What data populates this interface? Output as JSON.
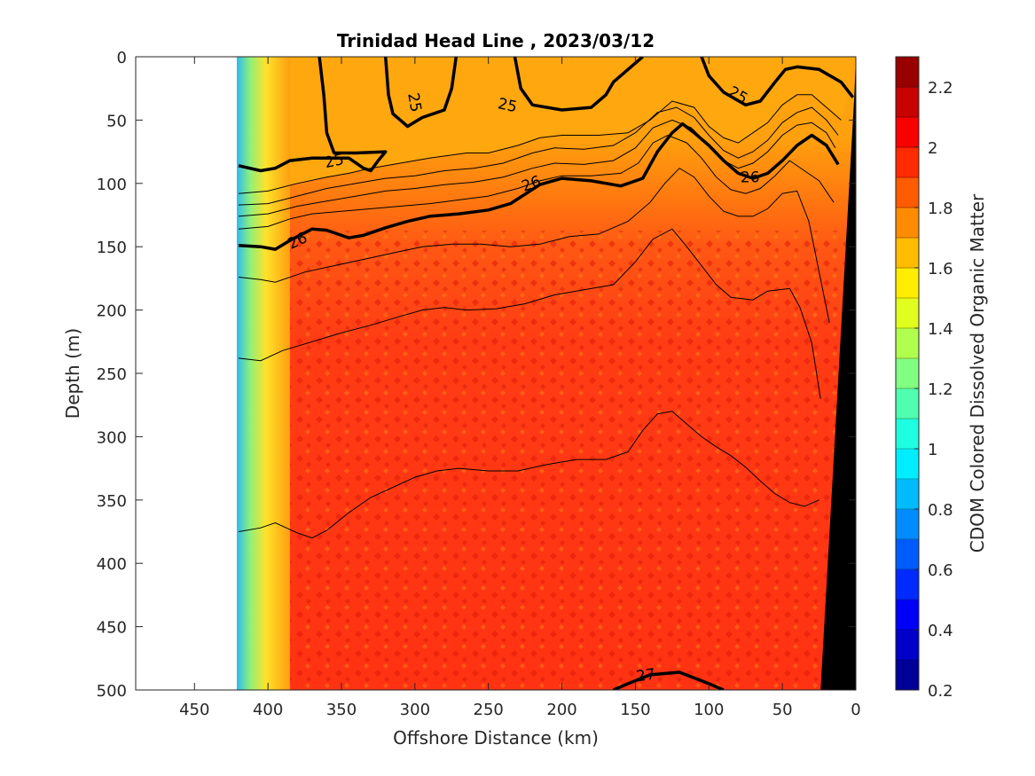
{
  "chart_data": {
    "type": "contour",
    "title": "Trinidad Head Line , 2023/03/12",
    "xlabel": "Offshore Distance (km)",
    "ylabel": "Depth (m)",
    "colorbar_label": "CDOM Colored Dissolved Organic Matter",
    "xlim": [
      490,
      0
    ],
    "ylim": [
      0,
      500
    ],
    "x_reversed": true,
    "y_reversed": true,
    "x_ticks": [
      450,
      400,
      350,
      300,
      250,
      200,
      150,
      100,
      50,
      0
    ],
    "y_ticks": [
      0,
      50,
      100,
      150,
      200,
      250,
      300,
      350,
      400,
      450,
      500
    ],
    "colorbar_range": [
      0.2,
      2.3
    ],
    "colorbar_ticks": [
      0.2,
      0.4,
      0.6,
      0.8,
      1,
      1.2,
      1.4,
      1.6,
      1.8,
      2,
      2.2
    ],
    "colormap": "jet",
    "data_extent_km": [
      420,
      0
    ],
    "field_description": {
      "surface_layer_value": 1.75,
      "deep_value": 2.05,
      "inshore_edge_value": 1.6,
      "offshore_edge_value": 0.9
    },
    "bathymetry_color": "#000000",
    "density_contours_labeled": [
      {
        "label": "25",
        "points": [
          [
            420,
            86
          ],
          [
            405,
            90
          ],
          [
            395,
            88
          ],
          [
            385,
            82
          ],
          [
            370,
            80
          ],
          [
            345,
            80
          ],
          [
            335,
            88
          ],
          [
            330,
            90
          ],
          [
            325,
            82
          ],
          [
            320,
            75
          ],
          [
            340,
            76
          ],
          [
            355,
            76
          ],
          [
            360,
            60
          ],
          [
            362,
            30
          ],
          [
            365,
            0
          ]
        ]
      },
      {
        "label": "25",
        "points": [
          [
            320,
            0
          ],
          [
            318,
            30
          ],
          [
            315,
            45
          ],
          [
            305,
            55
          ],
          [
            295,
            48
          ],
          [
            280,
            42
          ],
          [
            275,
            25
          ],
          [
            272,
            0
          ]
        ]
      },
      {
        "label": "25",
        "points": [
          [
            232,
            0
          ],
          [
            228,
            25
          ],
          [
            220,
            38
          ],
          [
            200,
            42
          ],
          [
            180,
            40
          ],
          [
            170,
            30
          ],
          [
            165,
            20
          ],
          [
            155,
            10
          ],
          [
            145,
            0
          ]
        ]
      },
      {
        "label": "25",
        "points": [
          [
            105,
            0
          ],
          [
            100,
            15
          ],
          [
            90,
            28
          ],
          [
            75,
            38
          ],
          [
            65,
            35
          ],
          [
            55,
            20
          ],
          [
            48,
            10
          ],
          [
            40,
            8
          ],
          [
            25,
            10
          ],
          [
            10,
            20
          ],
          [
            2,
            32
          ]
        ]
      },
      {
        "label": "26",
        "points": [
          [
            420,
            149
          ],
          [
            405,
            150
          ],
          [
            395,
            152
          ],
          [
            385,
            145
          ],
          [
            370,
            136
          ],
          [
            360,
            137
          ],
          [
            345,
            143
          ],
          [
            335,
            141
          ],
          [
            320,
            135
          ],
          [
            305,
            130
          ],
          [
            290,
            126
          ],
          [
            270,
            124
          ],
          [
            250,
            121
          ],
          [
            235,
            116
          ],
          [
            215,
            101
          ],
          [
            200,
            96
          ],
          [
            180,
            98
          ],
          [
            160,
            102
          ],
          [
            145,
            96
          ],
          [
            135,
            75
          ],
          [
            125,
            60
          ],
          [
            118,
            53
          ],
          [
            110,
            60
          ],
          [
            100,
            70
          ],
          [
            90,
            82
          ],
          [
            80,
            92
          ],
          [
            70,
            96
          ],
          [
            60,
            92
          ],
          [
            50,
            82
          ],
          [
            40,
            70
          ],
          [
            30,
            62
          ],
          [
            20,
            70
          ],
          [
            12,
            85
          ]
        ]
      },
      {
        "label": "27",
        "points": [
          [
            165,
            500
          ],
          [
            155,
            495
          ],
          [
            140,
            488
          ],
          [
            120,
            486
          ],
          [
            100,
            495
          ],
          [
            90,
            500
          ]
        ]
      }
    ],
    "density_contours_thin": [
      [
        [
          420,
          108
        ],
        [
          400,
          106
        ],
        [
          380,
          100
        ],
        [
          360,
          95
        ],
        [
          345,
          92
        ],
        [
          330,
          88
        ],
        [
          310,
          84
        ],
        [
          290,
          80
        ],
        [
          265,
          76
        ],
        [
          250,
          76
        ],
        [
          230,
          70
        ],
        [
          215,
          64
        ],
        [
          200,
          62
        ],
        [
          175,
          62
        ],
        [
          155,
          60
        ],
        [
          140,
          50
        ],
        [
          125,
          35
        ],
        [
          110,
          40
        ],
        [
          100,
          55
        ],
        [
          90,
          64
        ],
        [
          80,
          68
        ],
        [
          70,
          60
        ],
        [
          60,
          52
        ],
        [
          50,
          38
        ],
        [
          40,
          30
        ],
        [
          30,
          30
        ],
        [
          20,
          40
        ],
        [
          10,
          50
        ]
      ],
      [
        [
          420,
          117
        ],
        [
          400,
          116
        ],
        [
          380,
          110
        ],
        [
          360,
          104
        ],
        [
          340,
          100
        ],
        [
          320,
          96
        ],
        [
          300,
          94
        ],
        [
          280,
          90
        ],
        [
          260,
          88
        ],
        [
          240,
          84
        ],
        [
          220,
          76
        ],
        [
          205,
          72
        ],
        [
          185,
          73
        ],
        [
          165,
          70
        ],
        [
          150,
          60
        ],
        [
          135,
          44
        ],
        [
          122,
          40
        ],
        [
          110,
          48
        ],
        [
          100,
          62
        ],
        [
          90,
          74
        ],
        [
          80,
          80
        ],
        [
          70,
          75
        ],
        [
          60,
          66
        ],
        [
          50,
          52
        ],
        [
          40,
          44
        ],
        [
          30,
          40
        ],
        [
          20,
          50
        ],
        [
          12,
          62
        ]
      ],
      [
        [
          420,
          126
        ],
        [
          400,
          124
        ],
        [
          380,
          118
        ],
        [
          360,
          114
        ],
        [
          340,
          110
        ],
        [
          320,
          106
        ],
        [
          300,
          104
        ],
        [
          280,
          101
        ],
        [
          260,
          99
        ],
        [
          240,
          95
        ],
        [
          220,
          88
        ],
        [
          205,
          84
        ],
        [
          185,
          85
        ],
        [
          165,
          82
        ],
        [
          150,
          72
        ],
        [
          138,
          56
        ],
        [
          125,
          50
        ],
        [
          112,
          56
        ],
        [
          100,
          70
        ],
        [
          90,
          82
        ],
        [
          80,
          88
        ],
        [
          70,
          84
        ],
        [
          60,
          75
        ],
        [
          50,
          62
        ],
        [
          40,
          54
        ],
        [
          30,
          52
        ],
        [
          20,
          60
        ],
        [
          14,
          72
        ]
      ],
      [
        [
          420,
          136
        ],
        [
          400,
          134
        ],
        [
          385,
          128
        ],
        [
          370,
          124
        ],
        [
          350,
          122
        ],
        [
          330,
          120
        ],
        [
          310,
          118
        ],
        [
          290,
          116
        ],
        [
          270,
          113
        ],
        [
          250,
          110
        ],
        [
          230,
          104
        ],
        [
          215,
          98
        ],
        [
          200,
          94
        ],
        [
          180,
          94
        ],
        [
          160,
          92
        ],
        [
          148,
          84
        ],
        [
          138,
          68
        ],
        [
          128,
          62
        ],
        [
          115,
          68
        ],
        [
          105,
          80
        ],
        [
          95,
          95
        ],
        [
          85,
          105
        ],
        [
          75,
          108
        ],
        [
          65,
          104
        ],
        [
          55,
          94
        ],
        [
          45,
          82
        ],
        [
          35,
          90
        ],
        [
          25,
          98
        ],
        [
          15,
          115
        ]
      ],
      [
        [
          420,
          174
        ],
        [
          405,
          176
        ],
        [
          395,
          178
        ],
        [
          375,
          170
        ],
        [
          355,
          165
        ],
        [
          335,
          160
        ],
        [
          315,
          155
        ],
        [
          295,
          150
        ],
        [
          275,
          148
        ],
        [
          255,
          148
        ],
        [
          235,
          150
        ],
        [
          215,
          148
        ],
        [
          195,
          142
        ],
        [
          175,
          140
        ],
        [
          155,
          130
        ],
        [
          140,
          115
        ],
        [
          130,
          100
        ],
        [
          120,
          88
        ],
        [
          110,
          95
        ],
        [
          100,
          110
        ],
        [
          90,
          122
        ],
        [
          80,
          126
        ],
        [
          70,
          126
        ],
        [
          60,
          120
        ],
        [
          50,
          108
        ],
        [
          40,
          106
        ],
        [
          32,
          130
        ],
        [
          25,
          170
        ],
        [
          18,
          210
        ]
      ],
      [
        [
          420,
          238
        ],
        [
          405,
          240
        ],
        [
          390,
          232
        ],
        [
          370,
          225
        ],
        [
          350,
          218
        ],
        [
          330,
          212
        ],
        [
          310,
          205
        ],
        [
          295,
          200
        ],
        [
          280,
          198
        ],
        [
          265,
          200
        ],
        [
          245,
          199
        ],
        [
          225,
          195
        ],
        [
          205,
          188
        ],
        [
          185,
          184
        ],
        [
          165,
          180
        ],
        [
          150,
          162
        ],
        [
          138,
          144
        ],
        [
          125,
          136
        ],
        [
          115,
          150
        ],
        [
          105,
          165
        ],
        [
          95,
          180
        ],
        [
          85,
          190
        ],
        [
          70,
          192
        ],
        [
          60,
          185
        ],
        [
          45,
          183
        ],
        [
          38,
          198
        ],
        [
          30,
          226
        ],
        [
          24,
          270
        ]
      ],
      [
        [
          420,
          375
        ],
        [
          405,
          372
        ],
        [
          395,
          368
        ],
        [
          380,
          376
        ],
        [
          370,
          380
        ],
        [
          360,
          374
        ],
        [
          345,
          360
        ],
        [
          330,
          348
        ],
        [
          315,
          340
        ],
        [
          300,
          332
        ],
        [
          285,
          327
        ],
        [
          270,
          325
        ],
        [
          250,
          327
        ],
        [
          230,
          327
        ],
        [
          210,
          322
        ],
        [
          190,
          318
        ],
        [
          170,
          318
        ],
        [
          155,
          312
        ],
        [
          145,
          295
        ],
        [
          135,
          282
        ],
        [
          125,
          280
        ],
        [
          115,
          290
        ],
        [
          105,
          300
        ],
        [
          95,
          308
        ],
        [
          85,
          315
        ],
        [
          75,
          324
        ],
        [
          65,
          335
        ],
        [
          55,
          345
        ],
        [
          45,
          352
        ],
        [
          35,
          355
        ],
        [
          25,
          350
        ]
      ]
    ],
    "contour_label_positions": [
      {
        "label": "25",
        "x": 355,
        "y": 82,
        "angle": -12
      },
      {
        "label": "25",
        "x": 300,
        "y": 36,
        "angle": 80
      },
      {
        "label": "25",
        "x": 237,
        "y": 38,
        "angle": 12
      },
      {
        "label": "25",
        "x": 80,
        "y": 30,
        "angle": 30
      },
      {
        "label": "26",
        "x": 380,
        "y": 145,
        "angle": -25
      },
      {
        "label": "26",
        "x": 221,
        "y": 100,
        "angle": -20
      },
      {
        "label": "26",
        "x": 72,
        "y": 95,
        "angle": 0
      },
      {
        "label": "27",
        "x": 143,
        "y": 488,
        "angle": -8
      }
    ]
  }
}
